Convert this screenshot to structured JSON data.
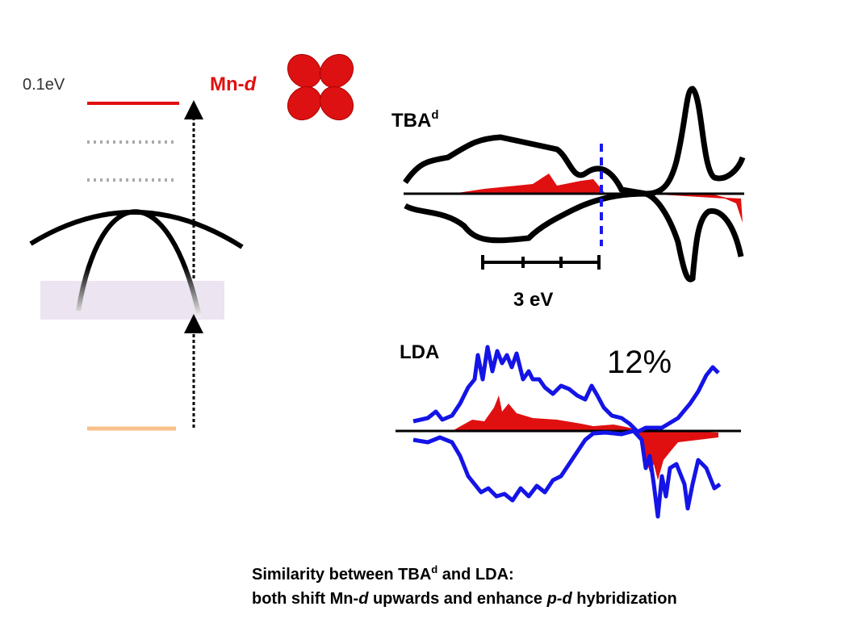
{
  "energy_label": "0.1eV",
  "orbital_label": {
    "prefix": "Mn-",
    "italic": "d"
  },
  "tba_label": {
    "base": "TBA",
    "sup": "d"
  },
  "scale_label": "3 eV",
  "lda_label": "LDA",
  "percent_label": "12%",
  "caption": {
    "line1": {
      "a": "Similarity between TBA",
      "sup": "d",
      "b": " and LDA:"
    },
    "line2": {
      "a": "both shift Mn-",
      "i1": "d",
      "b": " upwards and enhance ",
      "i2": "p-d",
      "c": " hybridization"
    }
  }
}
